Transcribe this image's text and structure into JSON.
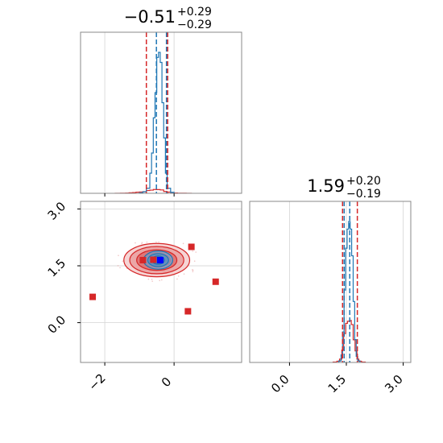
{
  "chart_data": {
    "type": "corner",
    "parameters": [
      {
        "title_value": "−0.51",
        "title_plus": "+0.29",
        "title_minus": "−0.29",
        "median": -0.51,
        "quantile_low": -0.8,
        "quantile_high": -0.22,
        "range": [
          -2.7,
          1.95
        ],
        "ticks": [
          -2,
          0
        ],
        "tick_labels": [
          "−2",
          "0"
        ]
      },
      {
        "title_value": "1.59",
        "title_plus": "+0.20",
        "title_minus": "−0.19",
        "median": 1.59,
        "quantile_low": 1.4,
        "quantile_high": 1.79,
        "range": [
          -1.05,
          3.2
        ],
        "ticks": [
          0.0,
          1.5,
          3.0
        ],
        "tick_labels": [
          "0.0",
          "1.5",
          "3.0"
        ]
      }
    ],
    "series": [
      {
        "color": "#d62728",
        "hist1d_p1": {
          "bin_edges": [
            -1.7,
            -1.55,
            -1.4,
            -1.3,
            -1.2,
            -1.1,
            -1.0,
            -0.9,
            -0.8,
            -0.7,
            -0.6,
            -0.5,
            -0.4,
            -0.3,
            -0.2,
            -0.1,
            0.0,
            0.1,
            0.2,
            0.35,
            0.5
          ],
          "counts": [
            1,
            3,
            4,
            9,
            14,
            22,
            26,
            30,
            52,
            60,
            72,
            70,
            64,
            34,
            24,
            14,
            6,
            3,
            2,
            1
          ]
        },
        "hist1d_p2": {
          "bin_edges": [
            1.15,
            1.25,
            1.32,
            1.38,
            1.43,
            1.48,
            1.53,
            1.58,
            1.63,
            1.68,
            1.73,
            1.78,
            1.83,
            1.9,
            2.0
          ],
          "counts": [
            1,
            3,
            8,
            30,
            70,
            95,
            100,
            102,
            92,
            55,
            28,
            8,
            3,
            1
          ]
        },
        "markers": [
          {
            "x": -2.35,
            "y": 0.68
          },
          {
            "x": -0.9,
            "y": 1.65
          },
          {
            "x": -0.6,
            "y": 1.66
          },
          {
            "x": 0.4,
            "y": 0.3
          },
          {
            "x": 0.5,
            "y": 2.0
          },
          {
            "x": 1.2,
            "y": 1.08
          }
        ]
      },
      {
        "color": "#1f77b4",
        "hist1d_p1": {
          "bin_edges": [
            -1.0,
            -0.9,
            -0.8,
            -0.7,
            -0.65,
            -0.6,
            -0.55,
            -0.5,
            -0.45,
            -0.4,
            -0.35,
            -0.3,
            -0.25,
            -0.2,
            -0.1,
            0.0
          ],
          "counts": [
            1,
            3,
            10,
            40,
            80,
            150,
            200,
            270,
            280,
            260,
            180,
            110,
            40,
            10,
            2
          ]
        },
        "hist1d_p2": {
          "bin_edges": [
            1.3,
            1.36,
            1.4,
            1.44,
            1.48,
            1.52,
            1.56,
            1.6,
            1.64,
            1.68,
            1.72,
            1.76,
            1.8,
            1.86
          ],
          "counts": [
            2,
            10,
            40,
            95,
            150,
            175,
            185,
            175,
            140,
            80,
            30,
            8,
            2
          ]
        },
        "markers": [
          {
            "x": -0.4,
            "y": 1.65
          }
        ]
      }
    ],
    "contours_p2_vs_p1": {
      "red": {
        "center": [
          -0.5,
          1.65
        ],
        "radii_x": [
          0.95,
          0.78,
          0.58,
          0.4
        ],
        "radii_y": [
          0.44,
          0.36,
          0.27,
          0.19
        ]
      },
      "blue": {
        "center": [
          -0.46,
          1.65
        ],
        "radii_x": [
          0.42,
          0.3,
          0.18
        ],
        "radii_y": [
          0.24,
          0.17,
          0.11
        ]
      }
    },
    "grid": true
  }
}
